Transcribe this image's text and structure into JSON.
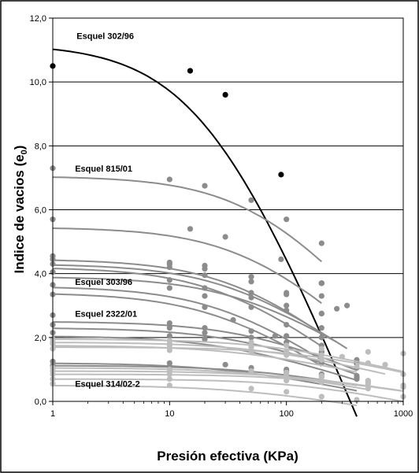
{
  "chart_data": {
    "type": "scatter",
    "title": "",
    "xlabel": "Presión efectiva (KPa)",
    "ylabel_main": "Indice de vacios (e",
    "ylabel_sub": "0",
    "ylabel_close": ")",
    "x_scale": "log",
    "xlim": [
      1,
      1000
    ],
    "ylim": [
      0,
      12
    ],
    "x_ticks": [
      1,
      10,
      100,
      1000
    ],
    "x_tick_labels": [
      "1",
      "10",
      "100",
      "1000"
    ],
    "y_ticks": [
      0,
      2,
      4,
      6,
      8,
      10,
      12
    ],
    "y_tick_labels": [
      "0,0",
      "2,0",
      "4,0",
      "6,0",
      "8,0",
      "10,0",
      "12,0"
    ],
    "grid": "horizontal",
    "colors": {
      "main_curve": "#000000",
      "grey_curve": "#8c8c8c",
      "light_curve": "#bdbdbd"
    },
    "annotations": [
      {
        "text": "Esquel 302/96",
        "x": 1.6,
        "y": 11.35
      },
      {
        "text": "Esquel 815/01",
        "x": 1.55,
        "y": 7.2
      },
      {
        "text": "Esquel 303/96",
        "x": 1.55,
        "y": 3.65
      },
      {
        "text": "Esquel 2322/01",
        "x": 1.55,
        "y": 2.65
      },
      {
        "text": "Esquel 314/02-2",
        "x": 1.55,
        "y": 0.45
      }
    ],
    "series": [
      {
        "color": "main",
        "width": 2,
        "e0": 11.2,
        "pc": 22,
        "cc": 9.1,
        "xmax": 400,
        "points": [
          [
            1,
            10.5
          ],
          [
            15,
            10.35
          ],
          [
            30,
            9.6
          ],
          [
            90,
            7.1
          ],
          [
            200,
            3.7
          ],
          [
            400,
            1.2
          ]
        ]
      },
      {
        "color": "grey",
        "width": 2,
        "e0": 7.05,
        "pc": 60,
        "cc": 4.2,
        "xmax": 200,
        "points": [
          [
            1,
            7.3
          ],
          [
            10,
            6.95
          ],
          [
            20,
            6.75
          ],
          [
            50,
            6.3
          ],
          [
            100,
            5.7
          ],
          [
            200,
            4.95
          ]
        ]
      },
      {
        "color": "grey",
        "width": 2,
        "e0": 5.45,
        "pc": 50,
        "cc": 3.4,
        "xmax": 200,
        "points": [
          [
            1,
            5.7
          ],
          [
            15,
            5.4
          ],
          [
            30,
            5.15
          ],
          [
            90,
            4.45
          ],
          [
            200,
            3.7
          ]
        ]
      },
      {
        "color": "grey",
        "width": 2,
        "e0": 4.45,
        "pc": 40,
        "cc": 3.0,
        "xmax": 200,
        "points": [
          [
            1,
            4.55
          ],
          [
            10,
            4.35
          ],
          [
            20,
            4.25
          ],
          [
            50,
            3.9
          ],
          [
            100,
            3.35
          ],
          [
            200,
            2.75
          ]
        ]
      },
      {
        "color": "grey",
        "width": 2,
        "e0": 4.3,
        "pc": 35,
        "cc": 2.6,
        "xmax": 330,
        "points": [
          [
            1,
            4.45
          ],
          [
            10,
            4.3
          ],
          [
            20,
            4.15
          ],
          [
            50,
            3.75
          ],
          [
            100,
            3.4
          ],
          [
            200,
            3.3
          ],
          [
            330,
            3.0
          ]
        ]
      },
      {
        "color": "grey",
        "width": 2,
        "e0": 4.2,
        "pc": 30,
        "cc": 2.8,
        "xmax": 200,
        "points": [
          [
            1,
            4.3
          ],
          [
            10,
            4.2
          ],
          [
            20,
            3.95
          ],
          [
            50,
            3.4
          ],
          [
            100,
            2.85
          ],
          [
            200,
            2.3
          ]
        ]
      },
      {
        "color": "grey",
        "width": 2,
        "e0": 3.9,
        "pc": 40,
        "cc": 2.3,
        "xmax": 270,
        "points": [
          [
            1,
            4.05
          ],
          [
            10,
            3.8
          ],
          [
            20,
            3.55
          ],
          [
            50,
            3.25
          ],
          [
            100,
            3.0
          ],
          [
            200,
            2.75
          ],
          [
            270,
            2.9
          ]
        ]
      },
      {
        "color": "grey",
        "width": 2,
        "e0": 3.6,
        "pc": 30,
        "cc": 2.6,
        "xmax": 200,
        "points": [
          [
            1,
            3.65
          ],
          [
            10,
            3.55
          ],
          [
            20,
            3.3
          ],
          [
            50,
            2.95
          ],
          [
            100,
            2.4
          ],
          [
            200,
            2.0
          ]
        ]
      },
      {
        "color": "grey",
        "width": 2,
        "e0": 3.4,
        "pc": 25,
        "cc": 2.4,
        "xmax": 200,
        "points": [
          [
            1,
            3.35
          ],
          [
            20,
            2.95
          ],
          [
            35,
            2.55
          ],
          [
            80,
            2.05
          ],
          [
            200,
            1.55
          ]
        ]
      },
      {
        "color": "grey",
        "width": 2,
        "e0": 2.5,
        "pc": 50,
        "cc": 1.6,
        "xmax": 400,
        "points": [
          [
            1,
            2.7
          ],
          [
            10,
            2.45
          ],
          [
            20,
            2.3
          ],
          [
            50,
            2.2
          ],
          [
            100,
            2.05
          ],
          [
            200,
            1.75
          ],
          [
            400,
            1.3
          ]
        ]
      },
      {
        "color": "grey",
        "width": 2,
        "e0": 2.3,
        "pc": 40,
        "cc": 1.4,
        "xmax": 400,
        "points": [
          [
            1,
            2.4
          ],
          [
            10,
            2.3
          ],
          [
            20,
            2.15
          ],
          [
            50,
            2.0
          ],
          [
            100,
            1.85
          ],
          [
            200,
            1.55
          ],
          [
            400,
            1.05
          ]
        ]
      },
      {
        "color": "grey",
        "width": 2,
        "e0": 2.05,
        "pc": 30,
        "cc": 1.2,
        "xmax": 400,
        "points": [
          [
            1,
            2.15
          ],
          [
            10,
            2.05
          ],
          [
            20,
            1.95
          ],
          [
            50,
            1.75
          ],
          [
            100,
            1.55
          ],
          [
            200,
            1.2
          ],
          [
            400,
            0.8
          ]
        ]
      },
      {
        "color": "light",
        "width": 2,
        "e0": 1.95,
        "pc": 80,
        "cc": 0.9,
        "xmax": 1000,
        "points": [
          [
            1,
            1.95
          ],
          [
            10,
            1.9
          ],
          [
            50,
            1.85
          ],
          [
            100,
            1.75
          ],
          [
            200,
            1.65
          ],
          [
            500,
            1.55
          ],
          [
            1000,
            1.5
          ]
        ]
      },
      {
        "color": "light",
        "width": 2,
        "e0": 1.85,
        "pc": 60,
        "cc": 0.9,
        "xmax": 700,
        "points": [
          [
            1,
            1.85
          ],
          [
            10,
            1.8
          ],
          [
            50,
            1.7
          ],
          [
            100,
            1.55
          ],
          [
            300,
            1.4
          ],
          [
            700,
            1.15
          ]
        ]
      },
      {
        "color": "light",
        "width": 2,
        "e0": 1.75,
        "pc": 40,
        "cc": 0.8,
        "xmax": 400,
        "points": [
          [
            1,
            1.8
          ],
          [
            10,
            1.75
          ],
          [
            50,
            1.6
          ],
          [
            100,
            1.45
          ],
          [
            200,
            1.3
          ],
          [
            400,
            1.1
          ]
        ]
      },
      {
        "color": "light",
        "width": 2,
        "e0": 1.7,
        "pc": 150,
        "cc": 0.9,
        "xmax": 1000,
        "points": [
          [
            1,
            1.65
          ],
          [
            10,
            1.6
          ],
          [
            50,
            1.55
          ],
          [
            100,
            1.5
          ],
          [
            200,
            1.45
          ],
          [
            500,
            1.2
          ],
          [
            1000,
            0.85
          ]
        ]
      },
      {
        "color": "grey",
        "width": 2,
        "e0": 1.2,
        "pc": 30,
        "cc": 0.75,
        "xmax": 400,
        "points": [
          [
            1,
            1.25
          ],
          [
            10,
            1.2
          ],
          [
            30,
            1.15
          ],
          [
            100,
            0.95
          ],
          [
            200,
            0.85
          ],
          [
            400,
            0.75
          ]
        ]
      },
      {
        "color": "grey",
        "width": 2,
        "e0": 1.12,
        "pc": 60,
        "cc": 0.7,
        "xmax": 400,
        "points": [
          [
            1,
            1.12
          ],
          [
            10,
            1.1
          ],
          [
            50,
            1.05
          ],
          [
            100,
            1.0
          ],
          [
            200,
            0.85
          ],
          [
            400,
            0.7
          ]
        ]
      },
      {
        "color": "light",
        "width": 2,
        "e0": 1.05,
        "pc": 60,
        "cc": 0.7,
        "xmax": 500,
        "points": [
          [
            1,
            1.05
          ],
          [
            10,
            1.0
          ],
          [
            50,
            0.95
          ],
          [
            100,
            0.9
          ],
          [
            200,
            0.8
          ],
          [
            500,
            0.55
          ]
        ]
      },
      {
        "color": "light",
        "width": 2,
        "e0": 0.95,
        "pc": 100,
        "cc": 0.6,
        "xmax": 1000,
        "points": [
          [
            1,
            0.95
          ],
          [
            10,
            0.95
          ],
          [
            100,
            0.9
          ],
          [
            200,
            0.8
          ],
          [
            500,
            0.65
          ],
          [
            1000,
            0.5
          ]
        ]
      },
      {
        "color": "light",
        "width": 2,
        "e0": 0.85,
        "pc": 150,
        "cc": 0.6,
        "xmax": 1000,
        "points": [
          [
            1,
            0.85
          ],
          [
            10,
            0.85
          ],
          [
            100,
            0.85
          ],
          [
            200,
            0.75
          ],
          [
            500,
            0.6
          ],
          [
            1000,
            0.45
          ]
        ]
      },
      {
        "color": "light",
        "width": 2,
        "e0": 0.7,
        "pc": 150,
        "cc": 0.8,
        "xmax": 1000,
        "points": [
          [
            1,
            0.7
          ],
          [
            10,
            0.7
          ],
          [
            100,
            0.65
          ],
          [
            200,
            0.6
          ],
          [
            500,
            0.4
          ],
          [
            1000,
            0.15
          ]
        ]
      },
      {
        "color": "light",
        "width": 2,
        "e0": 0.5,
        "pc": 40,
        "cc": 0.6,
        "xmax": 400,
        "points": [
          [
            1,
            0.55
          ],
          [
            10,
            0.5
          ],
          [
            50,
            0.4
          ],
          [
            100,
            0.3
          ],
          [
            200,
            0.15
          ],
          [
            400,
            0.05
          ]
        ]
      }
    ]
  }
}
